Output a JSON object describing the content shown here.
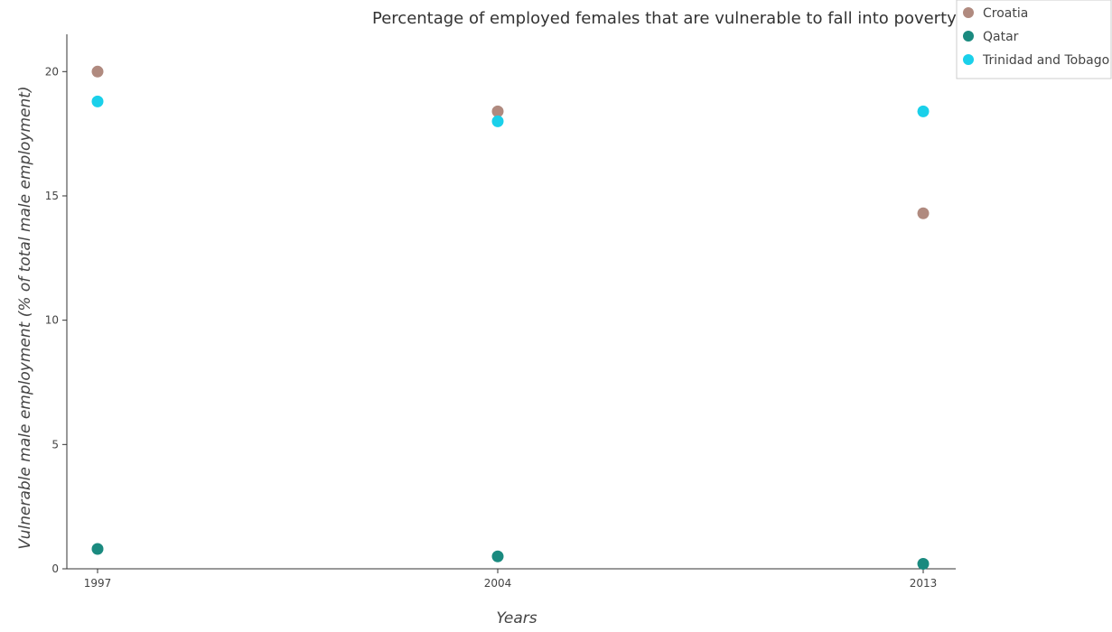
{
  "chart_data": {
    "type": "scatter",
    "title": "Percentage of employed females that are vulnerable to fall into poverty",
    "xlabel": "Years",
    "ylabel": "Vulnerable male employment (% of total male employment)",
    "categories": [
      "1997",
      "2004",
      "2013"
    ],
    "ylim": [
      0,
      21.5
    ],
    "yticks": [
      0,
      5,
      10,
      15,
      20
    ],
    "ytick_labels": [
      "0",
      "5",
      "10",
      "15",
      "20"
    ],
    "grid": false,
    "legend_position": "top-right",
    "series": [
      {
        "name": "Croatia",
        "color": "#b08a7f",
        "values": [
          20.0,
          18.4,
          14.3
        ]
      },
      {
        "name": "Qatar",
        "color": "#1a8a7f",
        "values": [
          0.8,
          0.5,
          0.2
        ]
      },
      {
        "name": "Trinidad and Tobago",
        "color": "#1ad0ea",
        "values": [
          18.8,
          18.0,
          18.4
        ]
      }
    ]
  }
}
